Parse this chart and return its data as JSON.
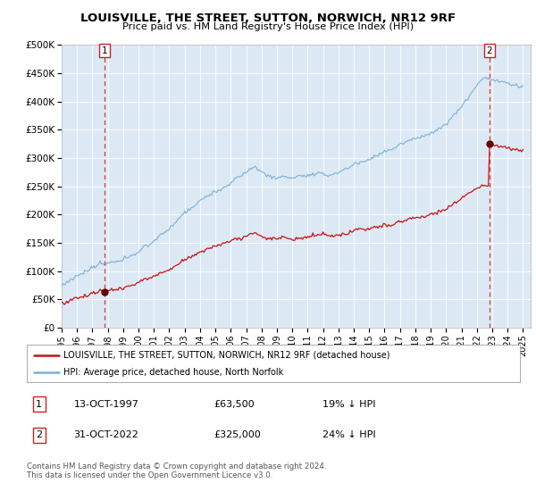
{
  "title": "LOUISVILLE, THE STREET, SUTTON, NORWICH, NR12 9RF",
  "subtitle": "Price paid vs. HM Land Registry's House Price Index (HPI)",
  "fig_bg_color": "#ffffff",
  "plot_bg_color": "#dce9f5",
  "hpi_color": "#7ab0d8",
  "price_color": "#cc1111",
  "marker_color": "#660000",
  "vline_color": "#dd3333",
  "sale1_year": 1997.79,
  "sale1_price": 63500,
  "sale2_year": 2022.83,
  "sale2_price": 325000,
  "ylim_min": 0,
  "ylim_max": 500000,
  "xlim_min": 1995.0,
  "xlim_max": 2025.5,
  "legend_entry1": "LOUISVILLE, THE STREET, SUTTON, NORWICH, NR12 9RF (detached house)",
  "legend_entry2": "HPI: Average price, detached house, North Norfolk",
  "table_row1_num": "1",
  "table_row1_date": "13-OCT-1997",
  "table_row1_price": "£63,500",
  "table_row1_hpi": "19% ↓ HPI",
  "table_row2_num": "2",
  "table_row2_date": "31-OCT-2022",
  "table_row2_price": "£325,000",
  "table_row2_hpi": "24% ↓ HPI",
  "footnote": "Contains HM Land Registry data © Crown copyright and database right 2024.\nThis data is licensed under the Open Government Licence v3.0.",
  "yticks": [
    0,
    50000,
    100000,
    150000,
    200000,
    250000,
    300000,
    350000,
    400000,
    450000,
    500000
  ],
  "ytick_labels": [
    "£0",
    "£50K",
    "£100K",
    "£150K",
    "£200K",
    "£250K",
    "£300K",
    "£350K",
    "£400K",
    "£450K",
    "£500K"
  ],
  "xticks": [
    1995,
    1996,
    1997,
    1998,
    1999,
    2000,
    2001,
    2002,
    2003,
    2004,
    2005,
    2006,
    2007,
    2008,
    2009,
    2010,
    2011,
    2012,
    2013,
    2014,
    2015,
    2016,
    2017,
    2018,
    2019,
    2020,
    2021,
    2022,
    2023,
    2024,
    2025
  ]
}
